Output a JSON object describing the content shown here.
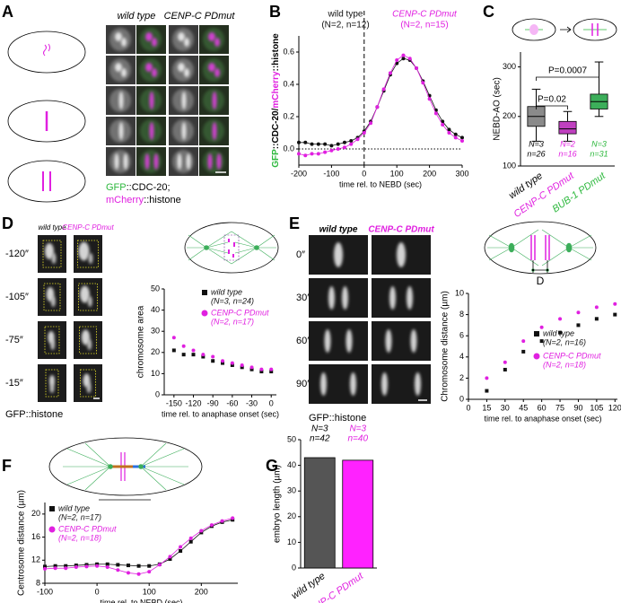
{
  "panels": [
    "A",
    "B",
    "C",
    "D",
    "E",
    "F",
    "G"
  ],
  "panel_a": {
    "columns": [
      "wild type",
      "CENP-C PDmut"
    ],
    "caption": [
      [
        {
          "text": "GFP",
          "color": "#2db83d"
        },
        {
          "text": "::CDC-20;",
          "color": "#000"
        }
      ],
      [
        {
          "text": "mCherry",
          "color": "#e020e0"
        },
        {
          "text": "::histone",
          "color": "#000"
        }
      ]
    ]
  },
  "panel_d": {
    "columns": [
      "wild type",
      "CENP-C PDmut"
    ],
    "times": [
      "-120″",
      "-105″",
      "-75″",
      "-15″"
    ],
    "caption": "GFP::histone"
  },
  "panel_e": {
    "columns": [
      "wild type",
      "CENP-C PDmut"
    ],
    "times": [
      "0″",
      "30″",
      "60″",
      "90″"
    ],
    "caption": "GFP::histone",
    "diagram_label": "D"
  },
  "chart_data": [
    {
      "type": "line",
      "ylabel": [
        {
          "text": "GFP",
          "color": "#2db83d"
        },
        {
          "text": "::CDC-20/",
          "color": "#000"
        },
        {
          "text": "mCherry",
          "color": "#e020e0"
        },
        {
          "text": "::histone",
          "color": "#000"
        }
      ],
      "xlabel": "time rel. to NEBD (sec)",
      "x": [
        -200,
        -180,
        -160,
        -140,
        -120,
        -100,
        -80,
        -60,
        -40,
        -20,
        0,
        20,
        40,
        60,
        80,
        100,
        120,
        140,
        160,
        180,
        200,
        220,
        240,
        260,
        280,
        300
      ],
      "series": [
        {
          "name": "wild type",
          "counts": "(N=2, n=12)",
          "color": "#111111",
          "marker": "circle",
          "values": [
            0.04,
            0.04,
            0.03,
            0.03,
            0.03,
            0.02,
            0.03,
            0.04,
            0.05,
            0.07,
            0.11,
            0.17,
            0.26,
            0.36,
            0.46,
            0.53,
            0.56,
            0.55,
            0.5,
            0.42,
            0.33,
            0.24,
            0.17,
            0.12,
            0.09,
            0.07
          ]
        },
        {
          "name": "CENP-C PDmut",
          "counts": "(N=2, n=15)",
          "color": "#e020e0",
          "marker": "circle",
          "values": [
            -0.03,
            -0.04,
            -0.03,
            -0.03,
            -0.02,
            -0.01,
            0,
            0.01,
            0.03,
            0.06,
            0.1,
            0.16,
            0.26,
            0.37,
            0.47,
            0.55,
            0.58,
            0.56,
            0.5,
            0.41,
            0.31,
            0.22,
            0.15,
            0.1,
            0.07,
            0.05
          ]
        }
      ],
      "xlim": [
        -200,
        300
      ],
      "xticks": [
        -200,
        -100,
        0,
        100,
        200,
        300
      ],
      "ylim": [
        -0.1,
        0.7
      ],
      "yticks": [
        {
          "value": 0,
          "label": "0.0"
        },
        0.2,
        0.4,
        0.6
      ]
    },
    {
      "type": "box",
      "ylabel": "NEBD-AO (sec)",
      "categories": [
        "wild type",
        "CENP-C PDmut",
        "BUB-1 PDmut"
      ],
      "colors": [
        "#8a8a8a",
        "#c040c0",
        "#3cae5a"
      ],
      "label_colors": [
        "#000000",
        "#e020e0",
        "#2db83d"
      ],
      "boxes": [
        {
          "min": 150,
          "q1": 180,
          "median": 200,
          "q3": 220,
          "max": 255
        },
        {
          "min": 150,
          "q1": 165,
          "median": 175,
          "q3": 190,
          "max": 210
        },
        {
          "min": 200,
          "q1": 215,
          "median": 230,
          "q3": 245,
          "max": 310
        }
      ],
      "n_labels": [
        [
          "N=3",
          "n=26"
        ],
        [
          "N=2",
          "n=16"
        ],
        [
          "N=3",
          "n=31"
        ]
      ],
      "p_values": [
        "P=0.02",
        "P=0.0007"
      ],
      "ylim": [
        100,
        330
      ],
      "yticks": [
        100,
        200,
        300
      ]
    },
    {
      "type": "scatter",
      "ylabel": "chromosome area",
      "xlabel": "time rel. to anaphase onset (sec)",
      "x": [
        -150,
        -135,
        -120,
        -105,
        -90,
        -75,
        -60,
        -45,
        -30,
        -15,
        0
      ],
      "series": [
        {
          "name": "wild type",
          "counts": "(N=3, n=24)",
          "color": "#111111",
          "marker": "square",
          "values": [
            21,
            19,
            19,
            18,
            16,
            15,
            14,
            13,
            12,
            11,
            11
          ]
        },
        {
          "name": "CENP-C PDmut",
          "counts": "(N=2, n=17)",
          "color": "#e020e0",
          "marker": "circle",
          "values": [
            27,
            23,
            21,
            19,
            18,
            16,
            15,
            14,
            13,
            12,
            12
          ]
        }
      ],
      "xlim": [
        -165,
        8
      ],
      "xticks": [
        -150,
        -120,
        -90,
        -60,
        -30,
        0
      ],
      "ylim": [
        0,
        50
      ],
      "yticks": [
        0,
        10,
        20,
        30,
        40,
        50
      ]
    },
    {
      "type": "scatter",
      "ylabel": "Chromosome distance (µm)",
      "xlabel": "time rel. to anaphase onset (sec)",
      "x": [
        15,
        30,
        45,
        60,
        75,
        90,
        105,
        120
      ],
      "series": [
        {
          "name": "wild type",
          "counts": "(N=2, n=16)",
          "color": "#111111",
          "marker": "square",
          "values": [
            0.8,
            2.8,
            4.5,
            5.5,
            6.3,
            7,
            7.6,
            8
          ]
        },
        {
          "name": "CENP-C PDmut",
          "counts": "(N=2, n=18)",
          "color": "#e020e0",
          "marker": "circle",
          "values": [
            2,
            3.5,
            5.5,
            6.8,
            7.6,
            8.2,
            8.7,
            9
          ]
        }
      ],
      "xlim": [
        0,
        122
      ],
      "xticks": [
        0,
        15,
        30,
        45,
        60,
        75,
        90,
        105,
        120
      ],
      "ylim": [
        0,
        10
      ],
      "yticks": [
        0,
        2,
        4,
        6,
        8,
        10
      ]
    },
    {
      "type": "line",
      "ylabel": "Centrosome distance (µm)",
      "xlabel": "time rel. to NEBD (sec)",
      "x": [
        -100,
        -80,
        -60,
        -40,
        -20,
        0,
        20,
        40,
        60,
        80,
        100,
        120,
        140,
        160,
        180,
        200,
        220,
        240,
        260
      ],
      "series": [
        {
          "name": "wild type",
          "counts": "(N=2, n=17)",
          "color": "#111111",
          "marker": "square",
          "values": [
            10.9,
            11,
            11,
            11.1,
            11.2,
            11.3,
            11.3,
            11.2,
            11.1,
            11,
            11,
            11.3,
            12.2,
            13.6,
            15.2,
            16.8,
            17.9,
            18.6,
            19
          ]
        },
        {
          "name": "CENP-C PDmut",
          "counts": "(N=2, n=18)",
          "color": "#e020e0",
          "marker": "circle",
          "values": [
            10.5,
            10.6,
            10.6,
            10.8,
            10.9,
            11,
            10.8,
            10.3,
            9.8,
            9.6,
            10,
            11.2,
            12.6,
            14.3,
            15.8,
            17.1,
            18.1,
            18.8,
            19.3
          ]
        }
      ],
      "xlim": [
        -100,
        270
      ],
      "xticks": [
        -100,
        0,
        100,
        200
      ],
      "ylim": [
        8,
        22
      ],
      "yticks": [
        8,
        12,
        16,
        20
      ]
    },
    {
      "type": "bar",
      "ylabel": "embryo length (µm)",
      "categories": [
        "wild type",
        "CENP-C PDmut"
      ],
      "values": [
        43,
        42
      ],
      "colors": [
        "#555555",
        "#ff22ff"
      ],
      "label_colors": [
        "#000000",
        "#e020e0"
      ],
      "n_labels": [
        [
          "N=3",
          "n=42"
        ],
        [
          "N=3",
          "n=40"
        ]
      ],
      "ylim": [
        0,
        50
      ],
      "yticks": [
        0,
        10,
        20,
        30,
        40,
        50
      ]
    }
  ]
}
